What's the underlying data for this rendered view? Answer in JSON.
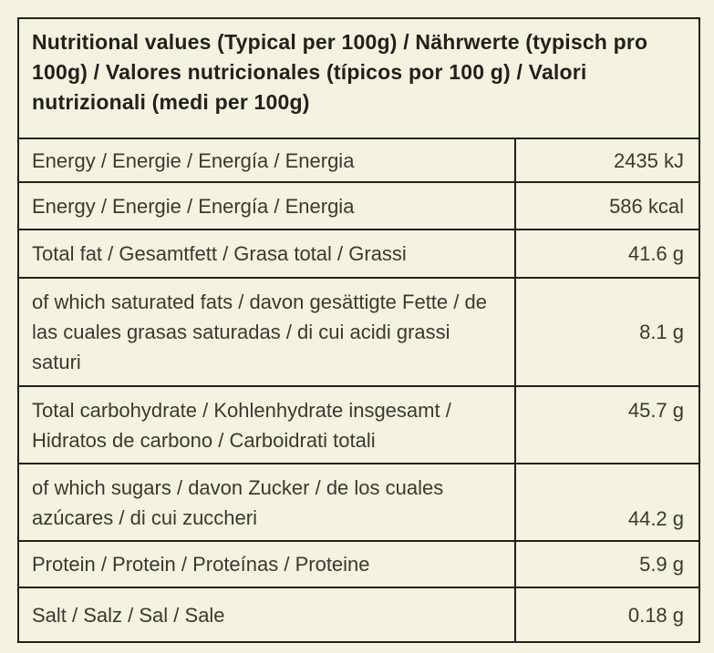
{
  "colors": {
    "background": "#f6f2e1",
    "border": "#23211a",
    "header_text": "#23211a",
    "row_text": "#3b392f"
  },
  "table": {
    "header": "Nutritional values (Typical per 100g) / Nährwerte (typisch pro 100g) / Valores nutricionales (típicos por 100 g) / Valori nutrizionali (medi per 100g)",
    "rows": [
      {
        "label": "Energy / Energie / Energía / Energia",
        "value": "2435 kJ"
      },
      {
        "label": "Energy / Energie / Energía / Energia",
        "value": "586 kcal"
      },
      {
        "label": "Total fat / Gesamtfett / Grasa total / Grassi",
        "value": "41.6 g"
      },
      {
        "label": "of which saturated fats /  davon gesättigte Fette / de las cuales grasas saturadas / di cui acidi grassi saturi",
        "value": "8.1 g"
      },
      {
        "label": "Total carbohydrate / Kohlenhydrate insgesamt / Hidratos de carbono / Carboidrati totali",
        "value": "45.7 g"
      },
      {
        "label": "of which sugars / davon Zucker / de los cuales azúcares / di cui zuccheri",
        "value": "44.2 g"
      },
      {
        "label": "Protein / Protein / Proteínas / Proteine",
        "value": "5.9 g"
      },
      {
        "label": "Salt / Salz / Sal / Sale",
        "value": "0.18 g"
      }
    ]
  }
}
